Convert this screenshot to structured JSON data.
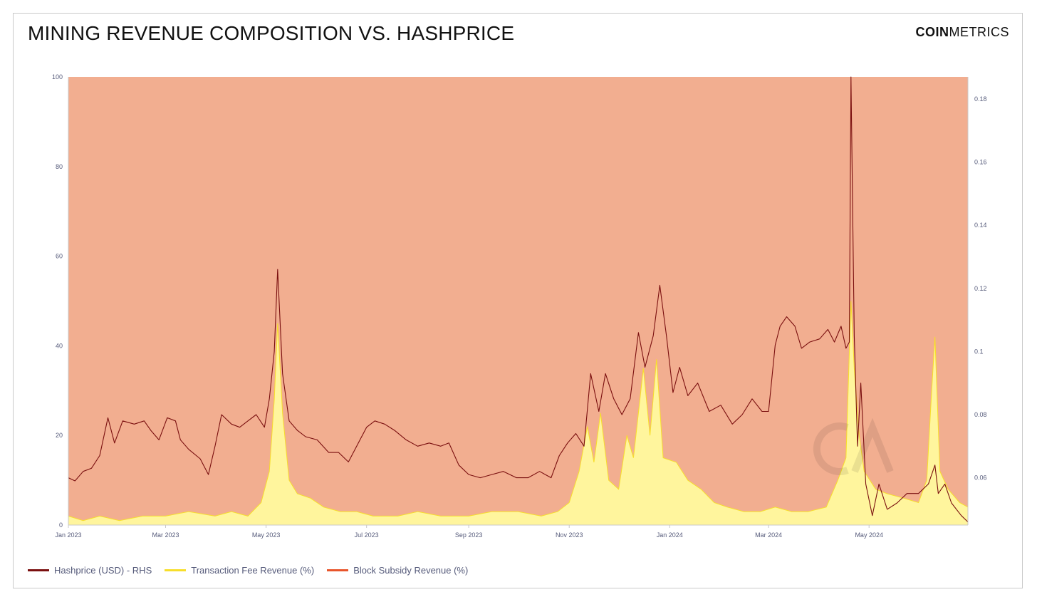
{
  "header": {
    "title": "MINING REVENUE COMPOSITION VS. HASHPRICE",
    "logo_bold": "COIN",
    "logo_light": "METRICS"
  },
  "colors": {
    "background_area": "#f2ae90",
    "fee_fill": "#fff59d",
    "fee_line": "#f7de2b",
    "hashprice_line": "#7a0f0f",
    "subsidy_legend": "#e8552b"
  },
  "chart_data": {
    "type": "area",
    "title": "MINING REVENUE COMPOSITION VS. HASHPRICE",
    "x_axis": {
      "type": "date",
      "range": [
        "2023-01-01",
        "2024-06-30"
      ],
      "tick_labels": [
        "Jan 2023",
        "Mar 2023",
        "May 2023",
        "Jul 2023",
        "Sep 2023",
        "Nov 2023",
        "Jan 2024",
        "Mar 2024",
        "May 2024"
      ],
      "tick_dates": [
        "2023-01-01",
        "2023-03-01",
        "2023-05-01",
        "2023-07-01",
        "2023-09-01",
        "2023-11-01",
        "2024-01-01",
        "2024-03-01",
        "2024-05-01"
      ]
    },
    "y_axis_left": {
      "range": [
        0,
        100
      ],
      "ticks": [
        0,
        20,
        40,
        60,
        80,
        100
      ],
      "unit": "%"
    },
    "y_axis_right": {
      "range": [
        0.045,
        0.187
      ],
      "ticks": [
        0.06,
        0.08,
        0.1,
        0.12,
        0.14,
        0.16,
        0.18
      ],
      "tick_labels": [
        "0.06",
        "0.08",
        "0.1",
        "0.12",
        "0.14",
        "0.16",
        "0.18"
      ]
    },
    "legend_position": "bottom-left",
    "grid": false,
    "series": [
      {
        "name": "Hashprice (USD) - RHS",
        "axis": "right",
        "kind": "line",
        "points": [
          [
            "2023-01-01",
            0.06
          ],
          [
            "2023-01-05",
            0.059
          ],
          [
            "2023-01-10",
            0.062
          ],
          [
            "2023-01-15",
            0.063
          ],
          [
            "2023-01-20",
            0.067
          ],
          [
            "2023-01-25",
            0.079
          ],
          [
            "2023-01-29",
            0.071
          ],
          [
            "2023-02-03",
            0.078
          ],
          [
            "2023-02-10",
            0.077
          ],
          [
            "2023-02-16",
            0.078
          ],
          [
            "2023-02-20",
            0.075
          ],
          [
            "2023-02-25",
            0.072
          ],
          [
            "2023-03-02",
            0.079
          ],
          [
            "2023-03-07",
            0.078
          ],
          [
            "2023-03-10",
            0.072
          ],
          [
            "2023-03-15",
            0.069
          ],
          [
            "2023-03-22",
            0.066
          ],
          [
            "2023-03-27",
            0.061
          ],
          [
            "2023-03-31",
            0.07
          ],
          [
            "2023-04-04",
            0.08
          ],
          [
            "2023-04-10",
            0.077
          ],
          [
            "2023-04-15",
            0.076
          ],
          [
            "2023-04-20",
            0.078
          ],
          [
            "2023-04-25",
            0.08
          ],
          [
            "2023-04-30",
            0.076
          ],
          [
            "2023-05-03",
            0.085
          ],
          [
            "2023-05-06",
            0.1
          ],
          [
            "2023-05-08",
            0.126
          ],
          [
            "2023-05-11",
            0.093
          ],
          [
            "2023-05-15",
            0.078
          ],
          [
            "2023-05-20",
            0.075
          ],
          [
            "2023-05-25",
            0.073
          ],
          [
            "2023-06-01",
            0.072
          ],
          [
            "2023-06-08",
            0.068
          ],
          [
            "2023-06-14",
            0.068
          ],
          [
            "2023-06-20",
            0.065
          ],
          [
            "2023-06-25",
            0.07
          ],
          [
            "2023-07-01",
            0.076
          ],
          [
            "2023-07-06",
            0.078
          ],
          [
            "2023-07-12",
            0.077
          ],
          [
            "2023-07-18",
            0.075
          ],
          [
            "2023-07-25",
            0.072
          ],
          [
            "2023-08-01",
            0.07
          ],
          [
            "2023-08-08",
            0.071
          ],
          [
            "2023-08-15",
            0.07
          ],
          [
            "2023-08-20",
            0.071
          ],
          [
            "2023-08-26",
            0.064
          ],
          [
            "2023-09-01",
            0.061
          ],
          [
            "2023-09-08",
            0.06
          ],
          [
            "2023-09-15",
            0.061
          ],
          [
            "2023-09-22",
            0.062
          ],
          [
            "2023-09-30",
            0.06
          ],
          [
            "2023-10-07",
            0.06
          ],
          [
            "2023-10-14",
            0.062
          ],
          [
            "2023-10-21",
            0.06
          ],
          [
            "2023-10-26",
            0.067
          ],
          [
            "2023-10-31",
            0.071
          ],
          [
            "2023-11-05",
            0.074
          ],
          [
            "2023-11-10",
            0.07
          ],
          [
            "2023-11-14",
            0.093
          ],
          [
            "2023-11-19",
            0.081
          ],
          [
            "2023-11-23",
            0.093
          ],
          [
            "2023-11-28",
            0.085
          ],
          [
            "2023-12-03",
            0.08
          ],
          [
            "2023-12-08",
            0.085
          ],
          [
            "2023-12-13",
            0.106
          ],
          [
            "2023-12-17",
            0.095
          ],
          [
            "2023-12-22",
            0.105
          ],
          [
            "2023-12-26",
            0.121
          ],
          [
            "2023-12-30",
            0.105
          ],
          [
            "2024-01-03",
            0.087
          ],
          [
            "2024-01-07",
            0.095
          ],
          [
            "2024-01-12",
            0.086
          ],
          [
            "2024-01-18",
            0.09
          ],
          [
            "2024-01-25",
            0.081
          ],
          [
            "2024-02-01",
            0.083
          ],
          [
            "2024-02-08",
            0.077
          ],
          [
            "2024-02-14",
            0.08
          ],
          [
            "2024-02-20",
            0.085
          ],
          [
            "2024-02-26",
            0.081
          ],
          [
            "2024-03-01",
            0.081
          ],
          [
            "2024-03-05",
            0.102
          ],
          [
            "2024-03-08",
            0.108
          ],
          [
            "2024-03-12",
            0.111
          ],
          [
            "2024-03-17",
            0.108
          ],
          [
            "2024-03-21",
            0.101
          ],
          [
            "2024-03-26",
            0.103
          ],
          [
            "2024-04-01",
            0.104
          ],
          [
            "2024-04-06",
            0.107
          ],
          [
            "2024-04-10",
            0.103
          ],
          [
            "2024-04-14",
            0.108
          ],
          [
            "2024-04-17",
            0.101
          ],
          [
            "2024-04-19",
            0.103
          ],
          [
            "2024-04-20",
            0.187
          ],
          [
            "2024-04-22",
            0.105
          ],
          [
            "2024-04-24",
            0.07
          ],
          [
            "2024-04-26",
            0.09
          ],
          [
            "2024-04-29",
            0.058
          ],
          [
            "2024-05-03",
            0.048
          ],
          [
            "2024-05-07",
            0.058
          ],
          [
            "2024-05-12",
            0.05
          ],
          [
            "2024-05-18",
            0.052
          ],
          [
            "2024-05-24",
            0.055
          ],
          [
            "2024-05-31",
            0.055
          ],
          [
            "2024-06-06",
            0.058
          ],
          [
            "2024-06-10",
            0.064
          ],
          [
            "2024-06-12",
            0.055
          ],
          [
            "2024-06-16",
            0.058
          ],
          [
            "2024-06-20",
            0.052
          ],
          [
            "2024-06-26",
            0.048
          ],
          [
            "2024-06-30",
            0.046
          ]
        ]
      },
      {
        "name": "Transaction Fee Revenue (%)",
        "axis": "left",
        "kind": "area",
        "points": [
          [
            "2023-01-01",
            2
          ],
          [
            "2023-01-10",
            1
          ],
          [
            "2023-01-20",
            2
          ],
          [
            "2023-02-01",
            1
          ],
          [
            "2023-02-15",
            2
          ],
          [
            "2023-03-01",
            2
          ],
          [
            "2023-03-15",
            3
          ],
          [
            "2023-03-31",
            2
          ],
          [
            "2023-04-10",
            3
          ],
          [
            "2023-04-20",
            2
          ],
          [
            "2023-04-28",
            5
          ],
          [
            "2023-05-03",
            12
          ],
          [
            "2023-05-06",
            28
          ],
          [
            "2023-05-08",
            45
          ],
          [
            "2023-05-11",
            25
          ],
          [
            "2023-05-15",
            10
          ],
          [
            "2023-05-20",
            7
          ],
          [
            "2023-05-28",
            6
          ],
          [
            "2023-06-05",
            4
          ],
          [
            "2023-06-15",
            3
          ],
          [
            "2023-06-25",
            3
          ],
          [
            "2023-07-05",
            2
          ],
          [
            "2023-07-20",
            2
          ],
          [
            "2023-08-01",
            3
          ],
          [
            "2023-08-15",
            2
          ],
          [
            "2023-09-01",
            2
          ],
          [
            "2023-09-15",
            3
          ],
          [
            "2023-10-01",
            3
          ],
          [
            "2023-10-15",
            2
          ],
          [
            "2023-10-25",
            3
          ],
          [
            "2023-11-01",
            5
          ],
          [
            "2023-11-07",
            12
          ],
          [
            "2023-11-12",
            22
          ],
          [
            "2023-11-16",
            14
          ],
          [
            "2023-11-20",
            25
          ],
          [
            "2023-11-25",
            10
          ],
          [
            "2023-12-01",
            8
          ],
          [
            "2023-12-06",
            20
          ],
          [
            "2023-12-10",
            15
          ],
          [
            "2023-12-16",
            35
          ],
          [
            "2023-12-20",
            20
          ],
          [
            "2023-12-24",
            37
          ],
          [
            "2023-12-28",
            15
          ],
          [
            "2024-01-05",
            14
          ],
          [
            "2024-01-12",
            10
          ],
          [
            "2024-01-20",
            8
          ],
          [
            "2024-01-28",
            5
          ],
          [
            "2024-02-05",
            4
          ],
          [
            "2024-02-15",
            3
          ],
          [
            "2024-02-25",
            3
          ],
          [
            "2024-03-05",
            4
          ],
          [
            "2024-03-15",
            3
          ],
          [
            "2024-03-25",
            3
          ],
          [
            "2024-04-05",
            4
          ],
          [
            "2024-04-12",
            10
          ],
          [
            "2024-04-17",
            15
          ],
          [
            "2024-04-20",
            50
          ],
          [
            "2024-04-22",
            35
          ],
          [
            "2024-04-25",
            20
          ],
          [
            "2024-04-28",
            12
          ],
          [
            "2024-05-05",
            8
          ],
          [
            "2024-05-12",
            7
          ],
          [
            "2024-05-22",
            6
          ],
          [
            "2024-05-31",
            5
          ],
          [
            "2024-06-05",
            10
          ],
          [
            "2024-06-08",
            30
          ],
          [
            "2024-06-10",
            42
          ],
          [
            "2024-06-13",
            12
          ],
          [
            "2024-06-18",
            8
          ],
          [
            "2024-06-25",
            5
          ],
          [
            "2024-06-30",
            4
          ]
        ]
      },
      {
        "name": "Block Subsidy Revenue (%)",
        "axis": "left",
        "kind": "area",
        "note_value": "100 minus Transaction Fee Revenue (%)"
      }
    ]
  },
  "watermark": {
    "name": "coin-metrics-watermark"
  }
}
